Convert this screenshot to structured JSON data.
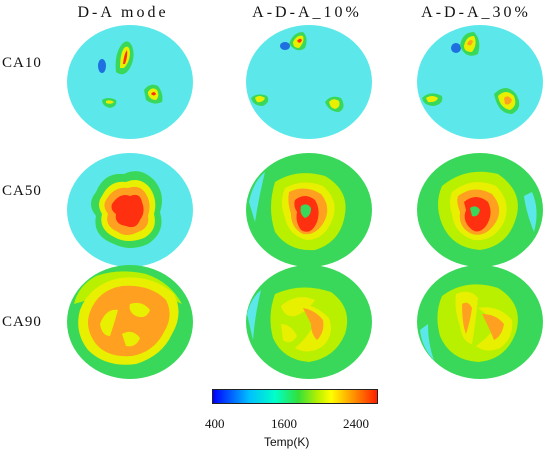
{
  "columns": [
    "D-A mode",
    "A-D-A_10%",
    "A-D-A_30%"
  ],
  "rows": [
    "CA10",
    "CA50",
    "CA90"
  ],
  "colorbar": {
    "title": "Temp(K)",
    "ticks": [
      "400",
      "1600",
      "2400"
    ],
    "colors": [
      "#0000ff",
      "#00bfff",
      "#00ffc8",
      "#33e03a",
      "#b8f000",
      "#ffff00",
      "#ffa000",
      "#ff2000"
    ]
  },
  "colors": {
    "background_field": "#5ce8ea",
    "low": "#1e6fe0",
    "mid_green": "#3ad85a",
    "yellow": "#e8f000",
    "orange": "#ffa020",
    "red": "#ff3010"
  }
}
